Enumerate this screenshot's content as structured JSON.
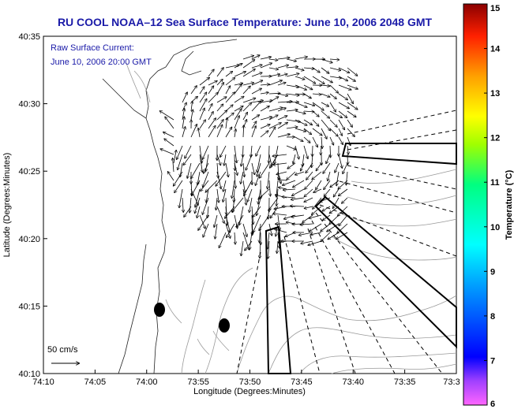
{
  "title": "RU COOL  NOAA–12  Sea Surface Temperature:  June 10, 2006 2048 GMT",
  "legend": {
    "line1": "Raw Surface Current:",
    "line2": "June 10, 2006 20:00 GMT"
  },
  "scale_label": "50 cm/s",
  "xlabel": "Longitude (Degrees:Minutes)",
  "ylabel": "Latitude (Degrees:Minutes)",
  "x_ticks": [
    "74:10",
    "74:05",
    "74:00",
    "73:55",
    "73:50",
    "73:45",
    "73:40",
    "73:35",
    "73:3"
  ],
  "y_ticks": [
    "40:35",
    "40:30",
    "40:25",
    "40:20",
    "40:15",
    "40:10"
  ],
  "colorbar": {
    "label": "Temperature (°C)",
    "ticks": [
      "15",
      "14",
      "13",
      "12",
      "11",
      "10",
      "9",
      "8",
      "7",
      "6"
    ],
    "min": 6,
    "max": 15,
    "colors": [
      "#ff55ff",
      "#8a2be2",
      "#1010ff",
      "#00a0ff",
      "#00ffff",
      "#00ff80",
      "#80ff00",
      "#ffff00",
      "#ffa000",
      "#ff3000",
      "#c00000",
      "#8b0000"
    ]
  }
}
